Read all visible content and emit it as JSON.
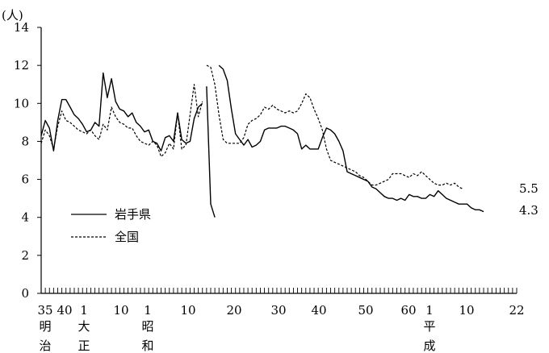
{
  "chart_data": {
    "type": "line",
    "unit_label": "(人)",
    "x_axis": {
      "tick_labels": [
        "35",
        "40",
        "1",
        "10",
        "1",
        "10",
        "20",
        "30",
        "40",
        "50",
        "60",
        "1",
        "10",
        "22"
      ],
      "era_labels": [
        {
          "chars": [
            "明",
            "治"
          ]
        },
        {
          "chars": [
            "大",
            "正"
          ]
        },
        {
          "chars": [
            "昭",
            "和"
          ]
        },
        {
          "chars": [
            "平",
            "成"
          ]
        }
      ]
    },
    "y_axis": {
      "min": 0,
      "max": 14,
      "tick_labels": [
        "0",
        "2",
        "4",
        "6",
        "8",
        "10",
        "12",
        "14"
      ]
    },
    "series": [
      {
        "name": "岩手県",
        "style": "solid",
        "color": "#000000",
        "end_label": "4.3",
        "segments": [
          [
            8.3,
            9.1,
            8.7,
            7.5,
            9.1,
            10.2,
            10.2,
            9.8,
            9.4,
            9.2,
            8.9,
            8.5,
            8.6,
            9.0,
            8.8,
            11.6,
            10.3,
            11.3,
            10.1,
            9.7,
            9.6,
            9.3,
            9.5,
            9.0,
            8.8,
            8.5,
            8.6,
            8.0,
            7.9,
            7.5,
            8.2,
            8.3,
            8.0,
            9.5,
            8.1,
            7.9,
            8.0,
            9.2,
            9.8,
            10.0
          ],
          [
            10.9,
            4.7,
            4.0
          ],
          [
            12.0,
            11.8,
            11.2,
            9.7,
            8.4,
            8.1,
            7.8,
            8.1,
            7.7,
            7.8,
            8.0,
            8.6,
            8.7,
            8.7,
            8.7,
            8.8,
            8.8,
            8.7,
            8.6,
            8.4,
            7.6,
            7.8,
            7.6,
            7.6,
            7.6,
            8.2,
            8.7,
            8.6,
            8.4,
            8.0,
            7.5,
            6.4,
            6.3,
            6.2,
            6.1,
            6.0,
            5.9,
            5.6,
            5.5,
            5.3,
            5.1,
            5.0,
            5.0,
            4.9,
            5.0,
            4.9,
            5.2,
            5.1,
            5.1,
            5.0,
            5.0,
            5.2,
            5.1,
            5.4,
            5.2,
            5.0,
            4.9,
            4.8,
            4.7,
            4.7,
            4.7,
            4.5,
            4.4,
            4.4,
            4.3
          ]
        ]
      },
      {
        "name": "全国",
        "style": "dashed",
        "color": "#000000",
        "end_label": "5.5",
        "segments": [
          [
            7.9,
            8.6,
            8.3,
            7.6,
            8.8,
            9.6,
            9.1,
            9.0,
            8.8,
            8.6,
            8.5,
            8.4,
            8.6,
            8.3,
            8.1,
            8.9,
            8.6,
            9.8,
            9.3,
            9.0,
            8.9,
            8.7,
            8.7,
            8.3,
            8.0,
            7.9,
            7.8,
            8.0,
            7.8,
            7.2,
            7.4,
            7.9,
            7.6,
            9.5,
            7.6,
            7.8,
            9.4,
            11.0,
            9.3,
            10.1
          ],
          [
            12.0,
            11.9,
            11.0,
            9.4,
            8.1,
            7.9,
            7.9,
            7.9,
            7.9,
            8.2,
            8.9,
            9.1,
            9.2,
            9.4,
            9.8,
            9.7,
            9.9,
            9.7,
            9.6,
            9.5,
            9.6,
            9.5,
            9.6,
            10.0,
            10.5,
            10.3,
            9.7,
            9.2,
            8.6,
            7.6,
            7.0,
            6.9,
            6.8,
            6.7,
            6.6,
            6.5,
            6.4,
            6.2,
            6.1,
            5.9,
            5.7,
            5.7,
            5.8,
            5.9,
            6.0,
            6.3,
            6.3,
            6.3,
            6.2,
            6.1,
            6.3,
            6.2,
            6.4,
            6.2,
            6.0,
            5.8,
            5.7,
            5.7,
            5.8,
            5.7,
            5.8,
            5.6,
            5.5
          ]
        ]
      }
    ],
    "grid": false,
    "legend_position": "lower-left"
  }
}
